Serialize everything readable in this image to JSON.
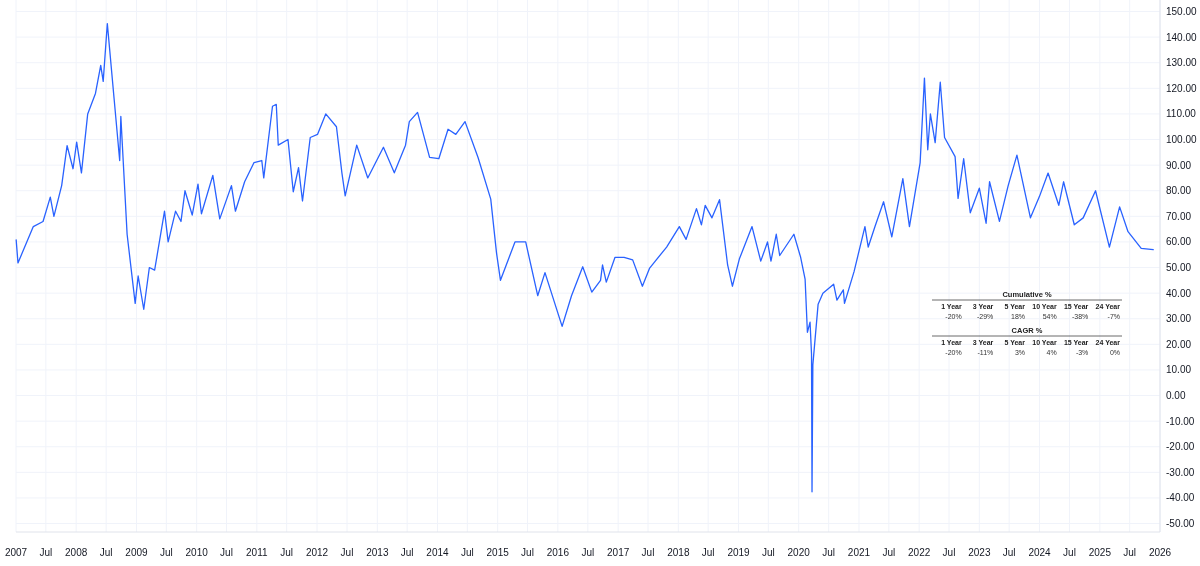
{
  "chart_data": {
    "type": "line",
    "x": [
      "2007-01-02",
      "2007-01-13",
      "2007-04-16",
      "2007-06-14",
      "2007-07-28",
      "2007-08-19",
      "2007-10-05",
      "2007-11-07",
      "2007-12-13",
      "2008-01-04",
      "2008-02-02",
      "2008-03-11",
      "2008-04-27",
      "2008-05-29",
      "2008-06-13",
      "2008-07-08",
      "2008-08-18",
      "2008-09-21",
      "2008-09-28",
      "2008-11-05",
      "2008-12-24",
      "2009-01-11",
      "2009-02-14",
      "2009-03-20",
      "2009-04-21",
      "2009-06-20",
      "2009-07-12",
      "2009-08-26",
      "2009-09-28",
      "2009-10-22",
      "2009-12-05",
      "2010-01-09",
      "2010-01-30",
      "2010-04-09",
      "2010-05-21",
      "2010-07-31",
      "2010-08-24",
      "2010-10-19",
      "2010-12-15",
      "2011-01-31",
      "2011-02-12",
      "2011-04-06",
      "2011-04-29",
      "2011-05-11",
      "2011-07-09",
      "2011-08-10",
      "2011-09-11",
      "2011-10-05",
      "2011-11-21",
      "2012-01-04",
      "2012-02-23",
      "2012-04-28",
      "2012-05-31",
      "2012-06-20",
      "2012-08-29",
      "2012-11-04",
      "2013-02-07",
      "2013-04-14",
      "2013-06-21",
      "2013-07-14",
      "2013-09-02",
      "2013-11-14",
      "2014-01-09",
      "2014-03-06",
      "2014-04-22",
      "2014-06-17",
      "2014-09-04",
      "2014-11-20",
      "2014-12-25",
      "2015-01-18",
      "2015-04-16",
      "2015-06-20",
      "2015-09-01",
      "2015-10-15",
      "2016-01-27",
      "2016-03-24",
      "2016-05-31",
      "2016-07-25",
      "2016-09-16",
      "2016-09-28",
      "2016-10-21",
      "2016-12-13",
      "2017-02-06",
      "2017-03-30",
      "2017-05-28",
      "2017-07-11",
      "2017-10-22",
      "2018-01-07",
      "2018-02-17",
      "2018-04-21",
      "2018-05-21",
      "2018-06-13",
      "2018-07-24",
      "2018-09-08",
      "2018-10-27",
      "2018-11-25",
      "2019-01-06",
      "2019-03-24",
      "2019-05-16",
      "2019-06-26",
      "2019-07-17",
      "2019-08-18",
      "2019-09-08",
      "2019-12-03",
      "2020-01-13",
      "2020-02-09",
      "2020-02-23",
      "2020-03-10",
      "2020-03-19",
      "2020-03-22",
      "2020-03-27",
      "2020-04-28",
      "2020-05-27",
      "2020-07-31",
      "2020-08-20",
      "2020-09-28",
      "2020-10-05",
      "2020-12-02",
      "2021-02-06",
      "2021-02-26",
      "2021-04-08",
      "2021-05-30",
      "2021-07-19",
      "2021-09-24",
      "2021-11-03",
      "2022-01-07",
      "2022-02-02",
      "2022-02-22",
      "2022-03-10",
      "2022-04-08",
      "2022-05-09",
      "2022-06-04",
      "2022-08-07",
      "2022-08-25",
      "2022-09-28",
      "2022-11-07",
      "2023-01-01",
      "2023-02-11",
      "2023-03-04",
      "2023-05-03",
      "2023-06-25",
      "2023-08-17",
      "2023-11-07",
      "2024-01-01",
      "2024-02-22",
      "2024-04-27",
      "2024-05-26",
      "2024-07-30",
      "2024-09-22",
      "2024-12-06",
      "2025-02-28",
      "2025-05-01",
      "2025-06-21",
      "2025-09-09",
      "2025-11-21"
    ],
    "series": [
      {
        "color": "#2962ff",
        "values": [
          60.8,
          51.8,
          66,
          68,
          77.5,
          70,
          82,
          97.6,
          88.6,
          99,
          87,
          110,
          118,
          129,
          122.7,
          145.3,
          116,
          91.8,
          109,
          63,
          36,
          46.7,
          33.7,
          50,
          49,
          72,
          60,
          72,
          68,
          80,
          70.5,
          82.6,
          71,
          86,
          69,
          82,
          72,
          83.5,
          91,
          91.8,
          85,
          113,
          113.7,
          97.8,
          100,
          79.6,
          89,
          76,
          100.8,
          102,
          110,
          105,
          87,
          78,
          97.8,
          85,
          97,
          87,
          97.8,
          107,
          110.6,
          93,
          92.5,
          104,
          102,
          107,
          93,
          76.7,
          55.7,
          45,
          60,
          60,
          39,
          48,
          27,
          39,
          50.3,
          40.4,
          45,
          51,
          44.3,
          54,
          54,
          53,
          42.7,
          49.8,
          58,
          66,
          61,
          73,
          66.7,
          74.3,
          69.4,
          76.5,
          51,
          42.7,
          53.3,
          66,
          52.5,
          60,
          52.5,
          63,
          54.7,
          63,
          54,
          45.5,
          24.7,
          28.7,
          16,
          -37.6,
          12,
          35.7,
          40,
          43.5,
          37.3,
          41.3,
          36,
          48.4,
          66,
          58,
          66,
          75.7,
          62,
          84.7,
          66,
          91,
          124,
          96,
          110,
          98.8,
          122.4,
          100.8,
          93.3,
          77,
          92.5,
          71.4,
          81,
          67.3,
          83.5,
          68,
          82,
          93.9,
          69.4,
          77.8,
          86.9,
          74.3,
          83.5,
          66.7,
          69.4,
          80,
          58,
          73.7,
          64,
          57.5,
          57
        ]
      }
    ],
    "xlim": [
      "2007-01-01",
      "2026-01-01"
    ],
    "xticks": [
      {
        "value": "2007-01-01",
        "label": "2007"
      },
      {
        "value": "2007-07-01",
        "label": "Jul"
      },
      {
        "value": "2008-01-01",
        "label": "2008"
      },
      {
        "value": "2008-07-01",
        "label": "Jul"
      },
      {
        "value": "2009-01-01",
        "label": "2009"
      },
      {
        "value": "2009-07-01",
        "label": "Jul"
      },
      {
        "value": "2010-01-01",
        "label": "2010"
      },
      {
        "value": "2010-07-01",
        "label": "Jul"
      },
      {
        "value": "2011-01-01",
        "label": "2011"
      },
      {
        "value": "2011-07-01",
        "label": "Jul"
      },
      {
        "value": "2012-01-01",
        "label": "2012"
      },
      {
        "value": "2012-07-01",
        "label": "Jul"
      },
      {
        "value": "2013-01-01",
        "label": "2013"
      },
      {
        "value": "2013-07-01",
        "label": "Jul"
      },
      {
        "value": "2014-01-01",
        "label": "2014"
      },
      {
        "value": "2014-07-01",
        "label": "Jul"
      },
      {
        "value": "2015-01-01",
        "label": "2015"
      },
      {
        "value": "2015-07-01",
        "label": "Jul"
      },
      {
        "value": "2016-01-01",
        "label": "2016"
      },
      {
        "value": "2016-07-01",
        "label": "Jul"
      },
      {
        "value": "2017-01-01",
        "label": "2017"
      },
      {
        "value": "2017-07-01",
        "label": "Jul"
      },
      {
        "value": "2018-01-01",
        "label": "2018"
      },
      {
        "value": "2018-07-01",
        "label": "Jul"
      },
      {
        "value": "2019-01-01",
        "label": "2019"
      },
      {
        "value": "2019-07-01",
        "label": "Jul"
      },
      {
        "value": "2020-01-01",
        "label": "2020"
      },
      {
        "value": "2020-07-01",
        "label": "Jul"
      },
      {
        "value": "2021-01-01",
        "label": "2021"
      },
      {
        "value": "2021-07-01",
        "label": "Jul"
      },
      {
        "value": "2022-01-01",
        "label": "2022"
      },
      {
        "value": "2022-07-01",
        "label": "Jul"
      },
      {
        "value": "2023-01-01",
        "label": "2023"
      },
      {
        "value": "2023-07-01",
        "label": "Jul"
      },
      {
        "value": "2024-01-01",
        "label": "2024"
      },
      {
        "value": "2024-07-01",
        "label": "Jul"
      },
      {
        "value": "2025-01-01",
        "label": "2025"
      },
      {
        "value": "2025-07-01",
        "label": "Jul"
      },
      {
        "value": "2026-01-01",
        "label": "2026"
      }
    ],
    "ylim": [
      -53.3,
      154.5
    ],
    "yticks": [
      {
        "value": -50,
        "label": "-50.00"
      },
      {
        "value": -40,
        "label": "-40.00"
      },
      {
        "value": -30,
        "label": "-30.00"
      },
      {
        "value": -20,
        "label": "-20.00"
      },
      {
        "value": -10,
        "label": "-10.00"
      },
      {
        "value": 0,
        "label": "0.00"
      },
      {
        "value": 10,
        "label": "10.00"
      },
      {
        "value": 20,
        "label": "20.00"
      },
      {
        "value": 30,
        "label": "30.00"
      },
      {
        "value": 40,
        "label": "40.00"
      },
      {
        "value": 50,
        "label": "50.00"
      },
      {
        "value": 60,
        "label": "60.00"
      },
      {
        "value": 70,
        "label": "70.00"
      },
      {
        "value": 80,
        "label": "80.00"
      },
      {
        "value": 90,
        "label": "90.00"
      },
      {
        "value": 100,
        "label": "100.00"
      },
      {
        "value": 110,
        "label": "110.00"
      },
      {
        "value": 120,
        "label": "120.00"
      },
      {
        "value": 130,
        "label": "130.00"
      },
      {
        "value": 140,
        "label": "140.00"
      },
      {
        "value": 150,
        "label": "150.00"
      }
    ],
    "grid": true,
    "marker": "none",
    "line_style": "solid",
    "annotations": [
      "Cumulative %",
      "1 Year",
      "3 Year",
      "5 Year",
      "10 Year",
      "15 Year",
      "24 Year",
      "-20%",
      "-29%",
      "18%",
      "54%",
      "-38%",
      "-7%",
      "CAGR %",
      "1 Year",
      "3 Year",
      "5 Year",
      "10 Year",
      "15 Year",
      "24 Year",
      "-20%",
      "-11%",
      "3%",
      "4%",
      "-3%",
      "0%"
    ]
  }
}
